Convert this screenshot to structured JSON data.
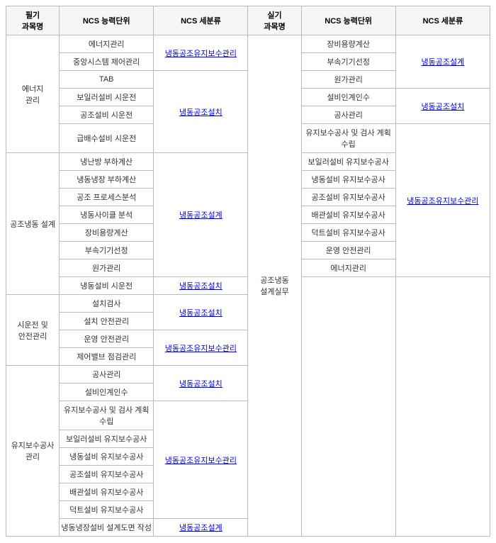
{
  "headers": {
    "subjectWritten": "필기\n과목명",
    "subjectPractical": "실기\n과목명",
    "ncsUnit": "NCS 능력단위",
    "ncsCat": "NCS 세분류"
  },
  "cats": {
    "maint": "냉동공조유지보수관리",
    "install": "냉동공조설치",
    "design": "냉동공조설계"
  },
  "leftSubjects": {
    "energy": "에너지\n관리",
    "hvacDesign": "공조냉동 설계",
    "trialSafety": "시운전 및\n안전관리",
    "maintMgmt": "유지보수공사관리"
  },
  "rightSubject": "공조냉동\n설계실무",
  "left": {
    "r1": "에너지관리",
    "r2": "중앙시스템 제어관리",
    "r3": "TAB",
    "r4": "보일러설비 시운전",
    "r5": "공조설비 시운전",
    "r6": "급배수설비 시운전",
    "r7": "냉난방 부하계산",
    "r8": "냉동냉장 부하계산",
    "r9": "공조 프로세스분석",
    "r10": "냉동사이클 분석",
    "r11": "장비용량계산",
    "r12": "부속기기선정",
    "r13": "원가관리",
    "r14": "냉동설비 시운전",
    "r15": "설치검사",
    "r16": "설치 안전관리",
    "r17": "운영 안전관리",
    "r18": "제어밸브 점검관리",
    "r19": "공사관리",
    "r20": "설비인계인수",
    "r21": "유지보수공사 및 검사 계획수립",
    "r22": "보일러설비 유지보수공사",
    "r23": "냉동설비 유지보수공사",
    "r24": "공조설비 유지보수공사",
    "r25": "배관설비 유지보수공사",
    "r26": "덕트설비 유지보수공사",
    "r27": "냉동냉장설비 설계도면 작성"
  },
  "right": {
    "r1": "장비용량계산",
    "r2": "부속기기선정",
    "r3": "원가관리",
    "r4": "설비인계인수",
    "r5": "공사관리",
    "r6": "유지보수공사 및 검사 계획수립",
    "r7": "보일러설비 유지보수공사",
    "r8": "냉동설비 유지보수공사",
    "r9": "공조설비 유지보수공사",
    "r10": "배관설비 유지보수공사",
    "r11": "덕트설비 유지보수공사",
    "r12": "운영 안전관리",
    "r13": "에너지관리"
  }
}
